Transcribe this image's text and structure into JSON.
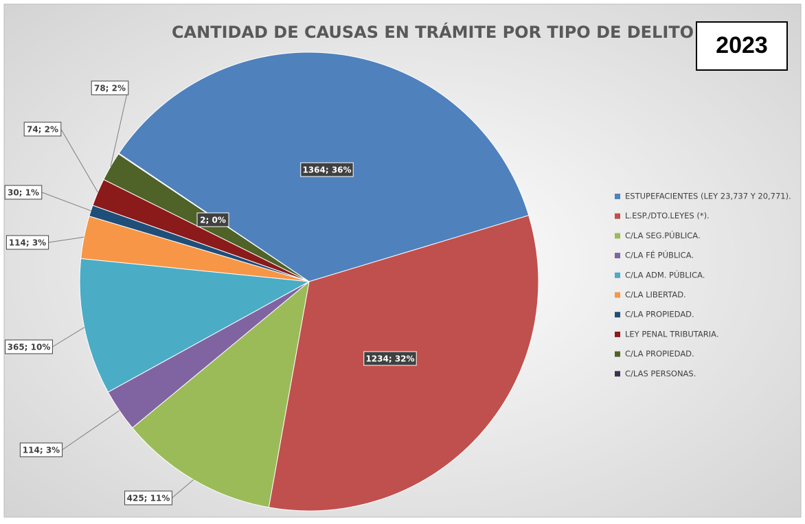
{
  "chart_data": {
    "type": "pie",
    "title": "CANTIDAD DE CAUSAS EN TRÁMITE POR TIPO DE DELITO",
    "subtitle": "2023",
    "categories": [
      "ESTUPEFACIENTES (LEY 23,737 Y 20,771).",
      "L.ESP./DTO.LEYES (*).",
      "C/LA SEG.PÚBLICA.",
      "C/LA FÉ PÚBLICA.",
      "C/LA ADM. PÚBLICA.",
      "C/LA LIBERTAD.",
      "C/LA PROPIEDAD.",
      "LEY PENAL TRIBUTARIA.",
      "C/LA PROPIEDAD.",
      "C/LAS PERSONAS."
    ],
    "values": [
      1364,
      1234,
      425,
      114,
      365,
      114,
      30,
      74,
      78,
      2
    ],
    "value_labels": [
      "1364; 36%",
      "1234; 32%",
      "425; 11%",
      "114; 3%",
      "365; 10%",
      "114; 3%",
      "30; 1%",
      "74; 2%",
      "78; 2%",
      "2; 0%"
    ],
    "colors": [
      "#4f81bd",
      "#c0504d",
      "#9bbb59",
      "#8064a2",
      "#4bacc6",
      "#f79646",
      "#1f4e79",
      "#8b1a1a",
      "#4f6228",
      "#3f3151"
    ],
    "legend": "right"
  }
}
